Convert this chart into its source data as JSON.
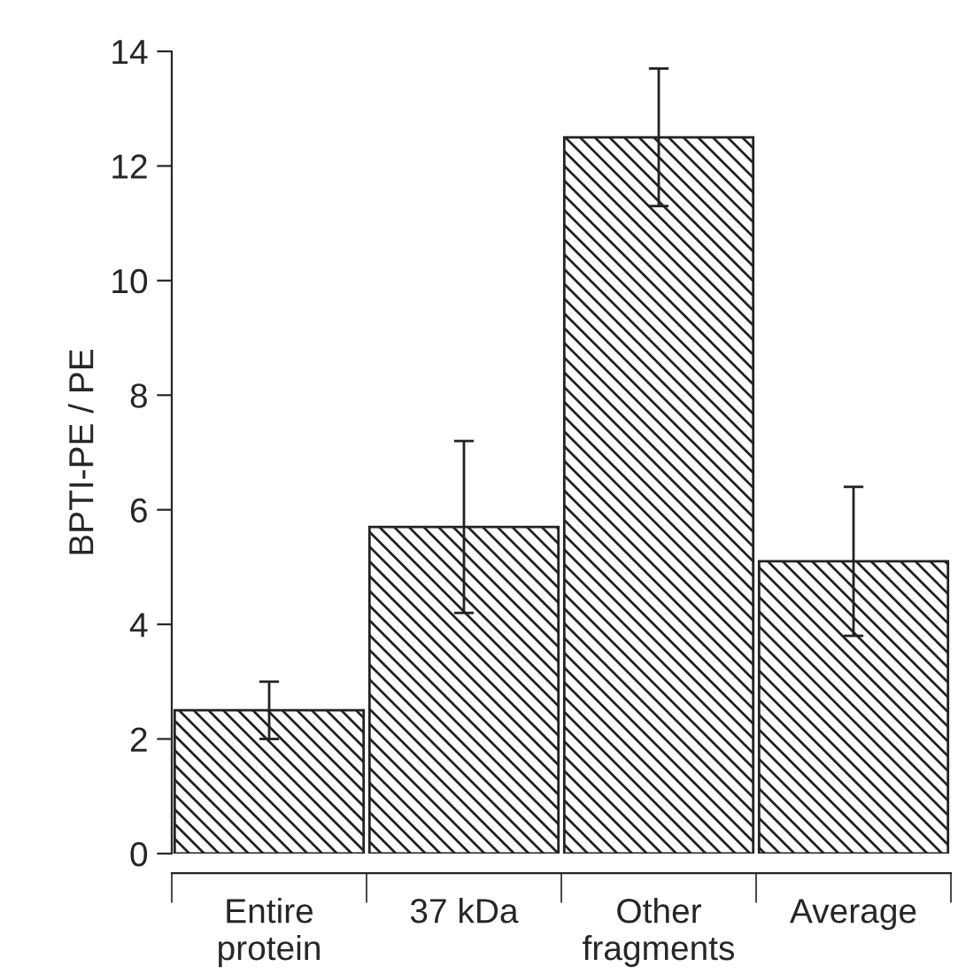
{
  "chart_data": {
    "type": "bar",
    "ylabel": "BPTI-PE / PE",
    "categories": [
      "Entire\nprotein",
      "37 kDa",
      "Other\nfragments",
      "Average"
    ],
    "values": [
      2.5,
      5.7,
      12.5,
      5.1
    ],
    "errors": [
      [
        2.0,
        3.0
      ],
      [
        4.2,
        7.2
      ],
      [
        11.3,
        13.7
      ],
      [
        3.8,
        6.4
      ]
    ],
    "color": "#222222",
    "ylim": [
      0,
      14
    ],
    "yticks": [
      0,
      2,
      4,
      6,
      8,
      10,
      12,
      14
    ],
    "grid": false
  }
}
